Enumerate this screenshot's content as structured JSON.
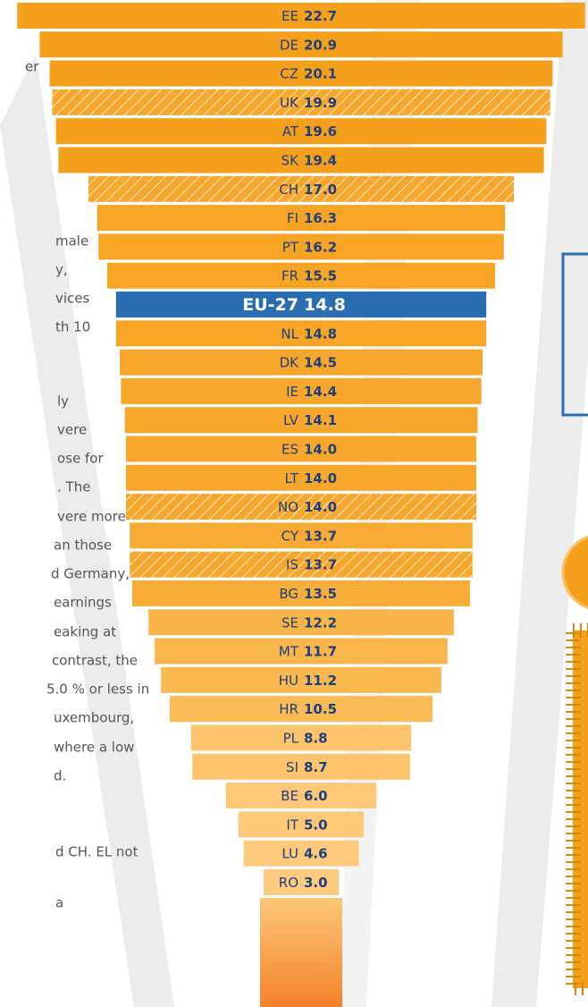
{
  "chart_data": {
    "type": "bar",
    "categories": [
      "EE",
      "DE",
      "CZ",
      "UK",
      "AT",
      "SK",
      "CH",
      "FI",
      "PT",
      "FR",
      "EU-27",
      "NL",
      "DK",
      "IE",
      "LV",
      "ES",
      "LT",
      "NO",
      "CY",
      "IS",
      "BG",
      "SE",
      "MT",
      "HU",
      "HR",
      "PL",
      "SI",
      "BE",
      "IT",
      "LU",
      "RO"
    ],
    "values": [
      22.7,
      20.9,
      20.1,
      19.9,
      19.6,
      19.4,
      17.0,
      16.3,
      16.2,
      15.5,
      14.8,
      14.8,
      14.5,
      14.4,
      14.1,
      14.0,
      14.0,
      14.0,
      13.7,
      13.7,
      13.5,
      12.2,
      11.7,
      11.2,
      10.5,
      8.8,
      8.7,
      6.0,
      5.0,
      4.6,
      3.0
    ],
    "value_labels": [
      "22.7",
      "20.9",
      "20.1",
      "19.9",
      "19.6",
      "19.4",
      "17.0",
      "16.3",
      "16.2",
      "15.5",
      "14.8",
      "14.8",
      "14.5",
      "14.4",
      "14.1",
      "14.0",
      "14.0",
      "14.0",
      "13.7",
      "13.7",
      "13.5",
      "12.2",
      "11.7",
      "11.2",
      "10.5",
      "8.8",
      "8.7",
      "6.0",
      "5.0",
      "4.6",
      "3.0"
    ],
    "colors": [
      "#f5a01c",
      "#f5a01c",
      "#f5a01c",
      "#f5a01c",
      "#f5a01c",
      "#f5a01c",
      "#f5a01c",
      "#f6a424",
      "#f6a424",
      "#f6a424",
      "#2a6db3",
      "#f6a526",
      "#f6a62a",
      "#f6a62a",
      "#f7a82c",
      "#f7a82c",
      "#f7a82c",
      "#f7a82c",
      "#f8ab34",
      "#f8ab34",
      "#f8ad38",
      "#f9b448",
      "#f9b64c",
      "#fab850",
      "#fabb56",
      "#fcc46c",
      "#fcc46c",
      "#fdc878",
      "#fdc878",
      "#fdca7c",
      "#fdcb80"
    ],
    "hatched": [
      false,
      false,
      false,
      true,
      false,
      false,
      true,
      false,
      false,
      false,
      false,
      false,
      false,
      false,
      false,
      false,
      false,
      true,
      false,
      true,
      false,
      false,
      false,
      false,
      false,
      false,
      false,
      false,
      false,
      false,
      false
    ]
  },
  "side_text": [
    "er",
    "male",
    "y,",
    "vices",
    "th 10",
    "ly",
    "vere",
    "ose for",
    ". The",
    "vere more",
    "an those",
    "d Germany,",
    "earnings",
    "eaking at",
    "contrast, the",
    "5.0 % or less in",
    "uxembourg,",
    "where a low",
    "d.",
    "d CH. EL not",
    "a"
  ]
}
